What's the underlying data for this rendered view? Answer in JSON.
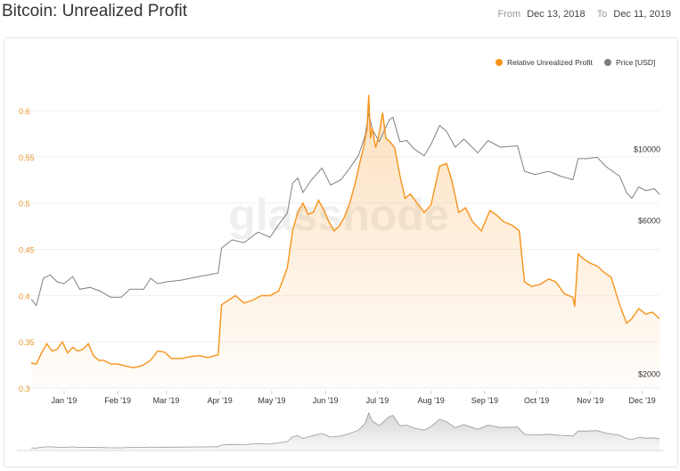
{
  "header": {
    "title": "Bitcoin: Unrealized Profit",
    "from_label": "From",
    "from_value": "Dec 13, 2018",
    "to_label": "To",
    "to_value": "Dec 11, 2019"
  },
  "watermark": "glassnode",
  "colors": {
    "profit": "#f7931a",
    "price": "#808080",
    "axis_left": "#e8962e",
    "axis_right": "#333333",
    "grid": "#f0f0f0"
  },
  "chart_data": {
    "type": "line",
    "title": "Bitcoin: Unrealized Profit",
    "x_range": [
      "2018-12-13",
      "2019-12-11"
    ],
    "x_ticks": [
      "Jan '19",
      "Feb '19",
      "Mar '19",
      "Apr '19",
      "May '19",
      "Jun '19",
      "Jul '19",
      "Aug '19",
      "Sep '19",
      "Oct '19",
      "Nov '19",
      "Dec '19"
    ],
    "x_tick_dates": [
      "2019-01-01",
      "2019-02-01",
      "2019-03-01",
      "2019-04-01",
      "2019-05-01",
      "2019-06-01",
      "2019-07-01",
      "2019-08-01",
      "2019-09-01",
      "2019-10-01",
      "2019-11-01",
      "2019-12-01"
    ],
    "y_left": {
      "ticks": [
        "0.3",
        "0.35",
        "0.4",
        "0.45",
        "0.5",
        "0.55",
        "0.6"
      ],
      "ylim": [
        0.3,
        0.63
      ]
    },
    "y_right": {
      "ticks": [
        "$2000",
        "$6000",
        "$10000"
      ],
      "scale": "log",
      "ylim": [
        1800,
        16000
      ]
    },
    "legend": {
      "position": "top-right"
    },
    "grid": true,
    "series": [
      {
        "name": "Relative Unrealized Profit",
        "axis": "left",
        "area": true,
        "points": [
          [
            "2018-12-13",
            0.327
          ],
          [
            "2018-12-16",
            0.326
          ],
          [
            "2018-12-19",
            0.338
          ],
          [
            "2018-12-22",
            0.348
          ],
          [
            "2018-12-25",
            0.34
          ],
          [
            "2018-12-28",
            0.342
          ],
          [
            "2018-12-31",
            0.35
          ],
          [
            "2019-01-03",
            0.338
          ],
          [
            "2019-01-06",
            0.344
          ],
          [
            "2019-01-09",
            0.34
          ],
          [
            "2019-01-12",
            0.342
          ],
          [
            "2019-01-15",
            0.348
          ],
          [
            "2019-01-18",
            0.335
          ],
          [
            "2019-01-21",
            0.33
          ],
          [
            "2019-01-24",
            0.33
          ],
          [
            "2019-01-28",
            0.326
          ],
          [
            "2019-02-01",
            0.326
          ],
          [
            "2019-02-05",
            0.324
          ],
          [
            "2019-02-10",
            0.322
          ],
          [
            "2019-02-15",
            0.324
          ],
          [
            "2019-02-20",
            0.33
          ],
          [
            "2019-02-24",
            0.34
          ],
          [
            "2019-02-28",
            0.339
          ],
          [
            "2019-03-04",
            0.332
          ],
          [
            "2019-03-10",
            0.332
          ],
          [
            "2019-03-15",
            0.334
          ],
          [
            "2019-03-20",
            0.335
          ],
          [
            "2019-03-25",
            0.333
          ],
          [
            "2019-03-31",
            0.336
          ],
          [
            "2019-04-02",
            0.39
          ],
          [
            "2019-04-06",
            0.395
          ],
          [
            "2019-04-10",
            0.4
          ],
          [
            "2019-04-15",
            0.392
          ],
          [
            "2019-04-20",
            0.395
          ],
          [
            "2019-04-25",
            0.4
          ],
          [
            "2019-04-30",
            0.4
          ],
          [
            "2019-05-05",
            0.405
          ],
          [
            "2019-05-10",
            0.43
          ],
          [
            "2019-05-13",
            0.47
          ],
          [
            "2019-05-16",
            0.49
          ],
          [
            "2019-05-19",
            0.5
          ],
          [
            "2019-05-22",
            0.488
          ],
          [
            "2019-05-25",
            0.49
          ],
          [
            "2019-05-28",
            0.503
          ],
          [
            "2019-05-31",
            0.493
          ],
          [
            "2019-06-03",
            0.48
          ],
          [
            "2019-06-06",
            0.47
          ],
          [
            "2019-06-09",
            0.475
          ],
          [
            "2019-06-12",
            0.485
          ],
          [
            "2019-06-15",
            0.5
          ],
          [
            "2019-06-18",
            0.52
          ],
          [
            "2019-06-21",
            0.545
          ],
          [
            "2019-06-23",
            0.56
          ],
          [
            "2019-06-25",
            0.58
          ],
          [
            "2019-06-26",
            0.617
          ],
          [
            "2019-06-27",
            0.57
          ],
          [
            "2019-06-28",
            0.582
          ],
          [
            "2019-06-30",
            0.56
          ],
          [
            "2019-07-02",
            0.575
          ],
          [
            "2019-07-04",
            0.598
          ],
          [
            "2019-07-06",
            0.57
          ],
          [
            "2019-07-08",
            0.567
          ],
          [
            "2019-07-11",
            0.56
          ],
          [
            "2019-07-14",
            0.53
          ],
          [
            "2019-07-17",
            0.505
          ],
          [
            "2019-07-20",
            0.51
          ],
          [
            "2019-07-24",
            0.5
          ],
          [
            "2019-07-28",
            0.49
          ],
          [
            "2019-08-01",
            0.498
          ],
          [
            "2019-08-06",
            0.54
          ],
          [
            "2019-08-10",
            0.543
          ],
          [
            "2019-08-13",
            0.525
          ],
          [
            "2019-08-17",
            0.49
          ],
          [
            "2019-08-21",
            0.495
          ],
          [
            "2019-08-25",
            0.48
          ],
          [
            "2019-08-30",
            0.47
          ],
          [
            "2019-09-04",
            0.492
          ],
          [
            "2019-09-08",
            0.487
          ],
          [
            "2019-09-12",
            0.48
          ],
          [
            "2019-09-17",
            0.476
          ],
          [
            "2019-09-21",
            0.47
          ],
          [
            "2019-09-24",
            0.415
          ],
          [
            "2019-09-28",
            0.41
          ],
          [
            "2019-10-03",
            0.412
          ],
          [
            "2019-10-08",
            0.418
          ],
          [
            "2019-10-12",
            0.415
          ],
          [
            "2019-10-17",
            0.402
          ],
          [
            "2019-10-22",
            0.398
          ],
          [
            "2019-10-23",
            0.388
          ],
          [
            "2019-10-25",
            0.445
          ],
          [
            "2019-10-28",
            0.44
          ],
          [
            "2019-11-01",
            0.435
          ],
          [
            "2019-11-05",
            0.432
          ],
          [
            "2019-11-09",
            0.425
          ],
          [
            "2019-11-13",
            0.42
          ],
          [
            "2019-11-18",
            0.39
          ],
          [
            "2019-11-22",
            0.37
          ],
          [
            "2019-11-25",
            0.375
          ],
          [
            "2019-11-29",
            0.386
          ],
          [
            "2019-12-03",
            0.38
          ],
          [
            "2019-12-07",
            0.382
          ],
          [
            "2019-12-11",
            0.375
          ]
        ]
      },
      {
        "name": "Price [USD]",
        "axis": "right",
        "area": false,
        "points": [
          [
            "2018-12-13",
            3400
          ],
          [
            "2018-12-16",
            3250
          ],
          [
            "2018-12-20",
            3950
          ],
          [
            "2018-12-24",
            4050
          ],
          [
            "2018-12-28",
            3850
          ],
          [
            "2019-01-01",
            3800
          ],
          [
            "2019-01-06",
            4000
          ],
          [
            "2019-01-10",
            3650
          ],
          [
            "2019-01-16",
            3700
          ],
          [
            "2019-01-22",
            3600
          ],
          [
            "2019-01-28",
            3450
          ],
          [
            "2019-02-03",
            3450
          ],
          [
            "2019-02-08",
            3650
          ],
          [
            "2019-02-16",
            3650
          ],
          [
            "2019-02-20",
            3950
          ],
          [
            "2019-02-24",
            3800
          ],
          [
            "2019-03-01",
            3850
          ],
          [
            "2019-03-10",
            3900
          ],
          [
            "2019-03-20",
            4000
          ],
          [
            "2019-03-31",
            4100
          ],
          [
            "2019-04-02",
            4900
          ],
          [
            "2019-04-08",
            5200
          ],
          [
            "2019-04-15",
            5100
          ],
          [
            "2019-04-23",
            5500
          ],
          [
            "2019-04-30",
            5300
          ],
          [
            "2019-05-05",
            5800
          ],
          [
            "2019-05-10",
            6300
          ],
          [
            "2019-05-13",
            7800
          ],
          [
            "2019-05-16",
            8100
          ],
          [
            "2019-05-19",
            7300
          ],
          [
            "2019-05-24",
            8000
          ],
          [
            "2019-05-30",
            8700
          ],
          [
            "2019-06-04",
            7700
          ],
          [
            "2019-06-10",
            8000
          ],
          [
            "2019-06-15",
            8700
          ],
          [
            "2019-06-20",
            9500
          ],
          [
            "2019-06-24",
            11000
          ],
          [
            "2019-06-26",
            12900
          ],
          [
            "2019-06-28",
            11500
          ],
          [
            "2019-07-02",
            10500
          ],
          [
            "2019-07-08",
            12300
          ],
          [
            "2019-07-10",
            12500
          ],
          [
            "2019-07-14",
            10500
          ],
          [
            "2019-07-18",
            10600
          ],
          [
            "2019-07-22",
            10000
          ],
          [
            "2019-07-28",
            9500
          ],
          [
            "2019-08-01",
            10300
          ],
          [
            "2019-08-06",
            11800
          ],
          [
            "2019-08-10",
            11300
          ],
          [
            "2019-08-15",
            10100
          ],
          [
            "2019-08-20",
            10700
          ],
          [
            "2019-08-28",
            9700
          ],
          [
            "2019-09-03",
            10600
          ],
          [
            "2019-09-10",
            10100
          ],
          [
            "2019-09-20",
            10200
          ],
          [
            "2019-09-24",
            8500
          ],
          [
            "2019-09-30",
            8300
          ],
          [
            "2019-10-08",
            8500
          ],
          [
            "2019-10-15",
            8200
          ],
          [
            "2019-10-22",
            8000
          ],
          [
            "2019-10-25",
            9300
          ],
          [
            "2019-10-30",
            9300
          ],
          [
            "2019-11-05",
            9400
          ],
          [
            "2019-11-10",
            8800
          ],
          [
            "2019-11-18",
            8200
          ],
          [
            "2019-11-22",
            7300
          ],
          [
            "2019-11-25",
            7000
          ],
          [
            "2019-11-29",
            7600
          ],
          [
            "2019-12-03",
            7400
          ],
          [
            "2019-12-08",
            7500
          ],
          [
            "2019-12-11",
            7200
          ]
        ]
      }
    ]
  }
}
